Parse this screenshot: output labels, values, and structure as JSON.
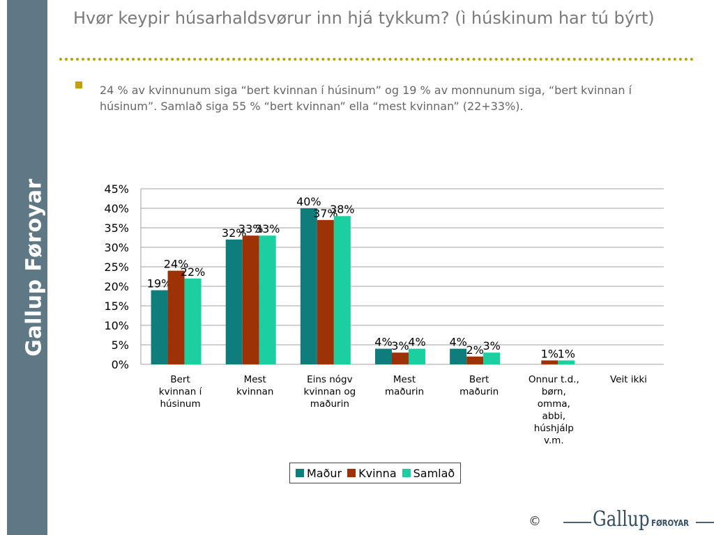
{
  "sidebar": {
    "brand": "Gallup Føroyar"
  },
  "header": {
    "title": "Hvør keypir húsarhaldsvørur inn hjá tykkum? (ì húskinum har tú býrt)"
  },
  "bullet": {
    "text": "24 % av kvinnunum siga “bert kvinnan í húsinum” og 19 % av monnunum siga, “bert kvinnan í húsinum”. Samlað siga 55 % “bert kvinnan” ella “mest kvinnan” (22+33%)."
  },
  "chart_data": {
    "type": "bar",
    "categories": [
      [
        "Bert",
        "kvinnan í",
        "húsinum"
      ],
      [
        "Mest",
        "kvinnan"
      ],
      [
        "Eins nógv",
        "kvinnan og",
        "maðurin"
      ],
      [
        "Mest",
        "maðurin"
      ],
      [
        "Bert",
        "maðurin"
      ],
      [
        "Onnur t.d.,",
        "børn,",
        "omma,",
        "abbi,",
        "húshjálp",
        "v.m."
      ],
      [
        "Veit ikki"
      ]
    ],
    "series": [
      {
        "name": "Maður",
        "color": "#0e7d7b",
        "values": [
          19,
          32,
          40,
          4,
          4,
          null,
          null
        ]
      },
      {
        "name": "Kvinna",
        "color": "#9c3205",
        "values": [
          24,
          33,
          37,
          3,
          2,
          1,
          null
        ]
      },
      {
        "name": "Samlað",
        "color": "#1ccfa0",
        "values": [
          22,
          33,
          38,
          4,
          3,
          1,
          null
        ]
      }
    ],
    "ylim": [
      0,
      45
    ],
    "yticks": [
      0,
      5,
      10,
      15,
      20,
      25,
      30,
      35,
      40,
      45
    ],
    "ytick_format": "{v}%",
    "data_label_format": "{v}%",
    "grid": true,
    "legend": "bottom"
  },
  "footer": {
    "copyright": "©",
    "logo_main": "Gallup",
    "logo_sub": "FØROYAR"
  }
}
